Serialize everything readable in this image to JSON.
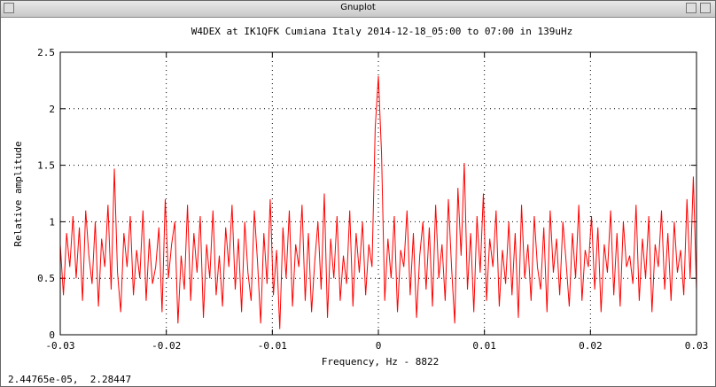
{
  "window": {
    "title": "Gnuplot"
  },
  "status": "2.44765e-05,  2.28447",
  "chart_data": {
    "type": "line",
    "title": "W4DEX at IK1QFK Cumiana Italy 2014-12-18_05:00 to 07:00 in 139uHz",
    "x_label": "Frequency, Hz - 8822",
    "y_label": "Relative amplitude",
    "color": "#ff0000",
    "grid": true,
    "xlim": [
      -0.03,
      0.03
    ],
    "ylim": [
      0,
      2.5
    ],
    "xticks": [
      -0.03,
      -0.02,
      -0.01,
      0,
      0.01,
      0.02,
      0.03
    ],
    "yticks": [
      0,
      0.5,
      1,
      1.5,
      2,
      2.5
    ],
    "x": [
      -0.03,
      -0.0297,
      -0.0294,
      -0.0291,
      -0.0288,
      -0.0285,
      -0.0282,
      -0.0279,
      -0.0276,
      -0.0273,
      -0.027,
      -0.0267,
      -0.0264,
      -0.0261,
      -0.0258,
      -0.0255,
      -0.0252,
      -0.0249,
      -0.0246,
      -0.0243,
      -0.024,
      -0.0237,
      -0.0234,
      -0.0231,
      -0.0228,
      -0.0225,
      -0.0222,
      -0.0219,
      -0.0216,
      -0.0213,
      -0.021,
      -0.0207,
      -0.0204,
      -0.0201,
      -0.0198,
      -0.0195,
      -0.0192,
      -0.0189,
      -0.0186,
      -0.0183,
      -0.018,
      -0.0177,
      -0.0174,
      -0.0171,
      -0.0168,
      -0.0165,
      -0.0162,
      -0.0159,
      -0.0156,
      -0.0153,
      -0.015,
      -0.0147,
      -0.0144,
      -0.0141,
      -0.0138,
      -0.0135,
      -0.0132,
      -0.0129,
      -0.0126,
      -0.0123,
      -0.012,
      -0.0117,
      -0.0114,
      -0.0111,
      -0.0108,
      -0.0105,
      -0.0102,
      -0.0099,
      -0.0096,
      -0.0093,
      -0.009,
      -0.0087,
      -0.0084,
      -0.0081,
      -0.0078,
      -0.0075,
      -0.0072,
      -0.0069,
      -0.0066,
      -0.0063,
      -0.006,
      -0.0057,
      -0.0054,
      -0.0051,
      -0.0048,
      -0.0045,
      -0.0042,
      -0.0039,
      -0.0036,
      -0.0033,
      -0.003,
      -0.0027,
      -0.0024,
      -0.0021,
      -0.0018,
      -0.0015,
      -0.0012,
      -0.0009,
      -0.0006,
      -0.0003,
      0,
      0.0003,
      0.0006,
      0.0009,
      0.0012,
      0.0015,
      0.0018,
      0.0021,
      0.0024,
      0.0027,
      0.003,
      0.0033,
      0.0036,
      0.0039,
      0.0042,
      0.0045,
      0.0048,
      0.0051,
      0.0054,
      0.0057,
      0.006,
      0.0063,
      0.0066,
      0.0069,
      0.0072,
      0.0075,
      0.0078,
      0.0081,
      0.0084,
      0.0087,
      0.009,
      0.0093,
      0.0096,
      0.0099,
      0.0102,
      0.0105,
      0.0108,
      0.0111,
      0.0114,
      0.0117,
      0.012,
      0.0123,
      0.0126,
      0.0129,
      0.0132,
      0.0135,
      0.0138,
      0.0141,
      0.0144,
      0.0147,
      0.015,
      0.0153,
      0.0156,
      0.0159,
      0.0162,
      0.0165,
      0.0168,
      0.0171,
      0.0174,
      0.0177,
      0.018,
      0.0183,
      0.0186,
      0.0189,
      0.0192,
      0.0195,
      0.0198,
      0.0201,
      0.0204,
      0.0207,
      0.021,
      0.0213,
      0.0216,
      0.0219,
      0.0222,
      0.0225,
      0.0228,
      0.0231,
      0.0234,
      0.0237,
      0.024,
      0.0243,
      0.0246,
      0.0249,
      0.0252,
      0.0255,
      0.0258,
      0.0261,
      0.0264,
      0.0267,
      0.027,
      0.0273,
      0.0276,
      0.0279,
      0.0282,
      0.0285,
      0.0288,
      0.0291,
      0.0294,
      0.0297,
      0.03
    ],
    "values": [
      0.8,
      0.35,
      0.9,
      0.6,
      1.05,
      0.5,
      0.95,
      0.3,
      1.1,
      0.7,
      0.45,
      1.0,
      0.25,
      0.85,
      0.6,
      1.15,
      0.4,
      1.47,
      0.55,
      0.2,
      0.9,
      0.6,
      1.05,
      0.35,
      0.75,
      0.5,
      1.1,
      0.3,
      0.85,
      0.45,
      0.6,
      0.95,
      0.2,
      1.2,
      0.5,
      0.8,
      1.0,
      0.1,
      0.7,
      0.4,
      1.15,
      0.3,
      0.9,
      0.55,
      1.05,
      0.15,
      0.8,
      0.5,
      1.1,
      0.35,
      0.7,
      0.25,
      0.95,
      0.6,
      1.15,
      0.4,
      0.85,
      0.2,
      1.0,
      0.55,
      0.3,
      1.1,
      0.65,
      0.1,
      0.9,
      0.45,
      1.2,
      0.35,
      0.75,
      0.05,
      0.95,
      0.5,
      1.1,
      0.25,
      0.8,
      0.6,
      1.15,
      0.3,
      0.9,
      0.2,
      0.65,
      1.0,
      0.4,
      1.25,
      0.15,
      0.85,
      0.5,
      1.05,
      0.3,
      0.7,
      0.45,
      1.1,
      0.25,
      0.9,
      0.55,
      1.0,
      0.35,
      0.8,
      0.6,
      1.83,
      2.29,
      1.6,
      0.3,
      0.85,
      0.5,
      1.05,
      0.2,
      0.75,
      0.6,
      1.1,
      0.35,
      0.9,
      0.15,
      0.7,
      1.0,
      0.4,
      0.95,
      0.25,
      1.15,
      0.5,
      0.8,
      0.3,
      1.2,
      0.6,
      0.1,
      1.3,
      0.7,
      1.52,
      0.4,
      0.9,
      0.2,
      1.05,
      0.55,
      1.25,
      0.3,
      0.85,
      0.6,
      1.1,
      0.25,
      0.75,
      0.45,
      1.0,
      0.35,
      0.9,
      0.15,
      1.15,
      0.5,
      0.8,
      0.3,
      1.05,
      0.6,
      0.4,
      0.95,
      0.2,
      1.1,
      0.55,
      0.85,
      0.35,
      1.0,
      0.65,
      0.25,
      0.9,
      0.5,
      1.15,
      0.3,
      0.75,
      0.6,
      1.05,
      0.4,
      0.95,
      0.2,
      0.8,
      0.55,
      1.1,
      0.35,
      0.9,
      0.25,
      1.0,
      0.6,
      0.7,
      0.45,
      1.15,
      0.3,
      0.85,
      0.5,
      1.05,
      0.2,
      0.8,
      0.6,
      1.1,
      0.4,
      0.9,
      0.3,
      1.0,
      0.55,
      0.75,
      0.35,
      1.2,
      0.5,
      1.4,
      0.4
    ]
  }
}
